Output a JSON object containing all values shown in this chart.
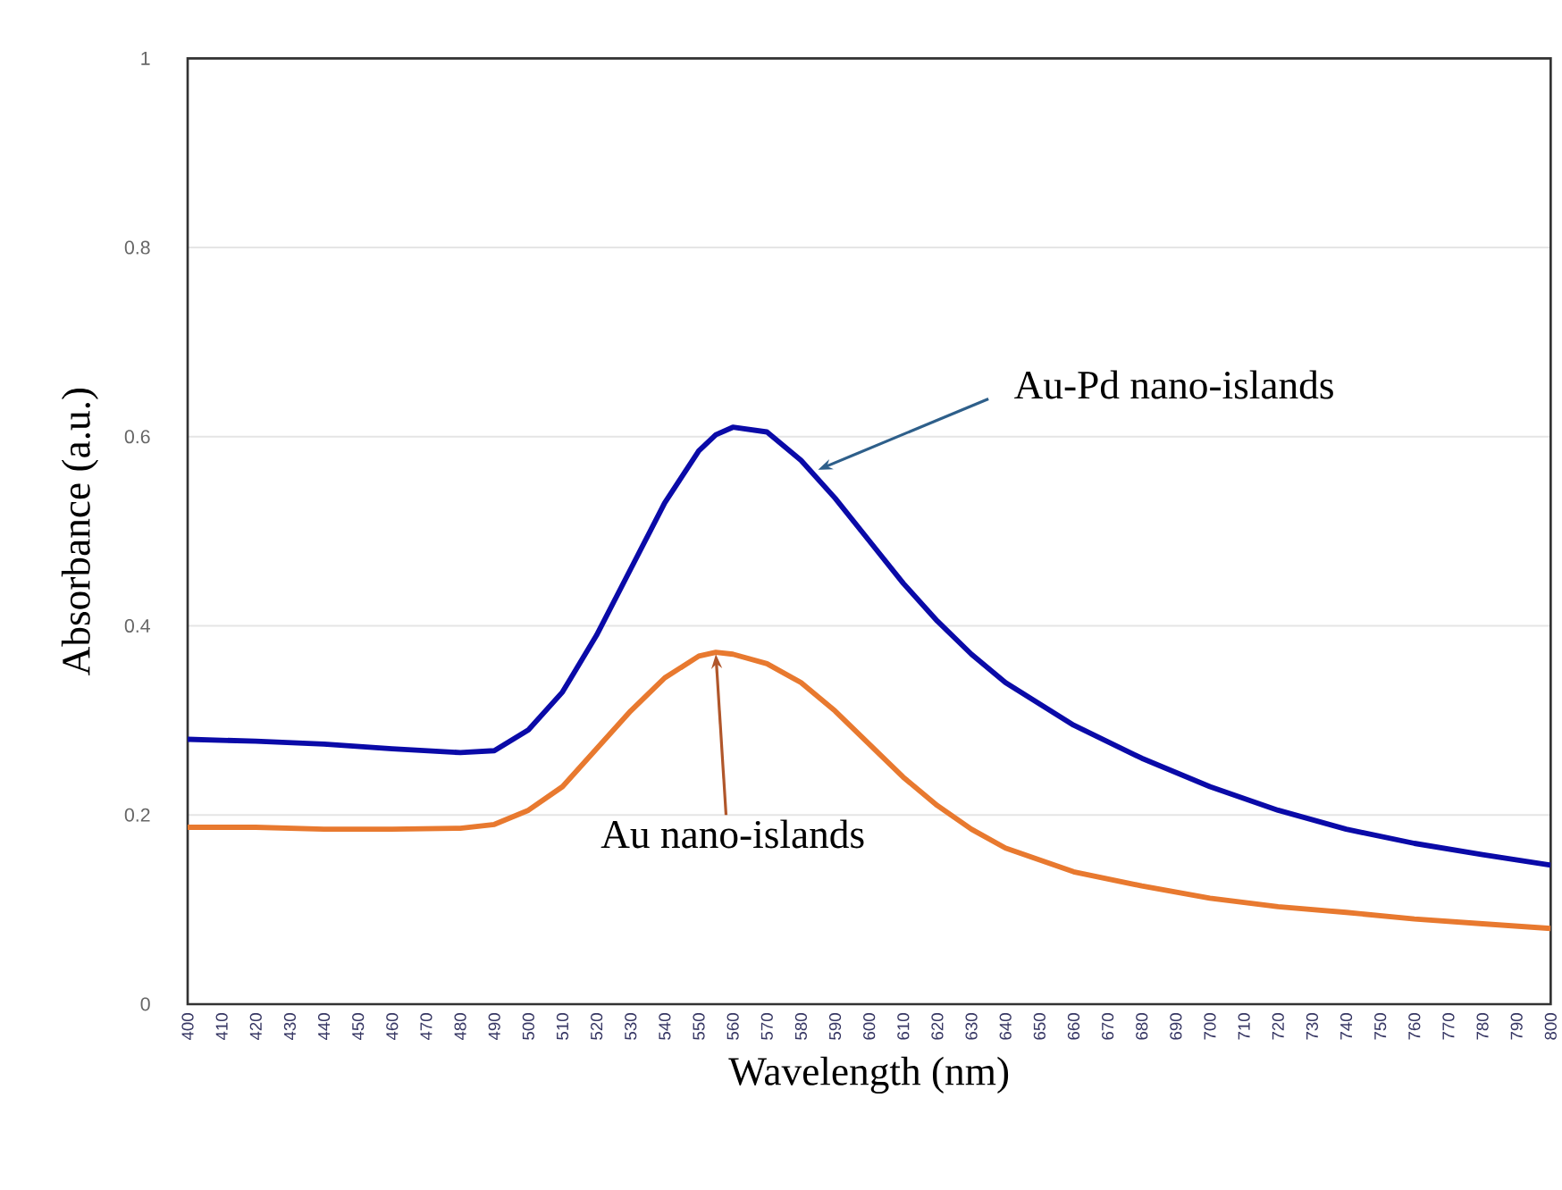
{
  "chart_data": {
    "type": "line",
    "xlabel": "Wavelength (nm)",
    "ylabel": "Absorbance (a.u.)",
    "x": [
      400,
      420,
      440,
      460,
      480,
      490,
      500,
      510,
      520,
      530,
      540,
      550,
      555,
      560,
      570,
      580,
      590,
      600,
      610,
      620,
      630,
      640,
      660,
      680,
      700,
      720,
      740,
      760,
      780,
      800
    ],
    "series": [
      {
        "color": "#0a0aa8",
        "values": [
          0.28,
          0.278,
          0.275,
          0.27,
          0.266,
          0.268,
          0.29,
          0.33,
          0.39,
          0.46,
          0.53,
          0.585,
          0.602,
          0.61,
          0.605,
          0.575,
          0.535,
          0.49,
          0.445,
          0.405,
          0.37,
          0.34,
          0.295,
          0.26,
          0.23,
          0.205,
          0.185,
          0.17,
          0.158,
          0.147
        ]
      },
      {
        "color": "#e8792f",
        "values": [
          0.187,
          0.187,
          0.185,
          0.185,
          0.186,
          0.19,
          0.205,
          0.23,
          0.27,
          0.31,
          0.345,
          0.368,
          0.372,
          0.37,
          0.36,
          0.34,
          0.31,
          0.275,
          0.24,
          0.21,
          0.185,
          0.165,
          0.14,
          0.125,
          0.112,
          0.103,
          0.097,
          0.09,
          0.085,
          0.08
        ]
      }
    ],
    "xlim": [
      400,
      800
    ],
    "ylim": [
      0,
      1
    ],
    "xticks": [
      400,
      410,
      420,
      430,
      440,
      450,
      460,
      470,
      480,
      490,
      500,
      510,
      520,
      530,
      540,
      550,
      560,
      570,
      580,
      590,
      600,
      610,
      620,
      630,
      640,
      650,
      660,
      670,
      680,
      690,
      700,
      710,
      720,
      730,
      740,
      750,
      760,
      770,
      780,
      790,
      800
    ],
    "yticks": [
      0,
      0.2,
      0.4,
      0.6,
      0.8,
      1
    ],
    "grid": "y",
    "marker": "none",
    "line_style": "solid",
    "annotations": [
      {
        "text": "Au-Pd nano-islands",
        "x": 585,
        "y": 0.565
      },
      {
        "text": "Au nano-islands",
        "x": 555,
        "y": 0.37
      }
    ]
  }
}
